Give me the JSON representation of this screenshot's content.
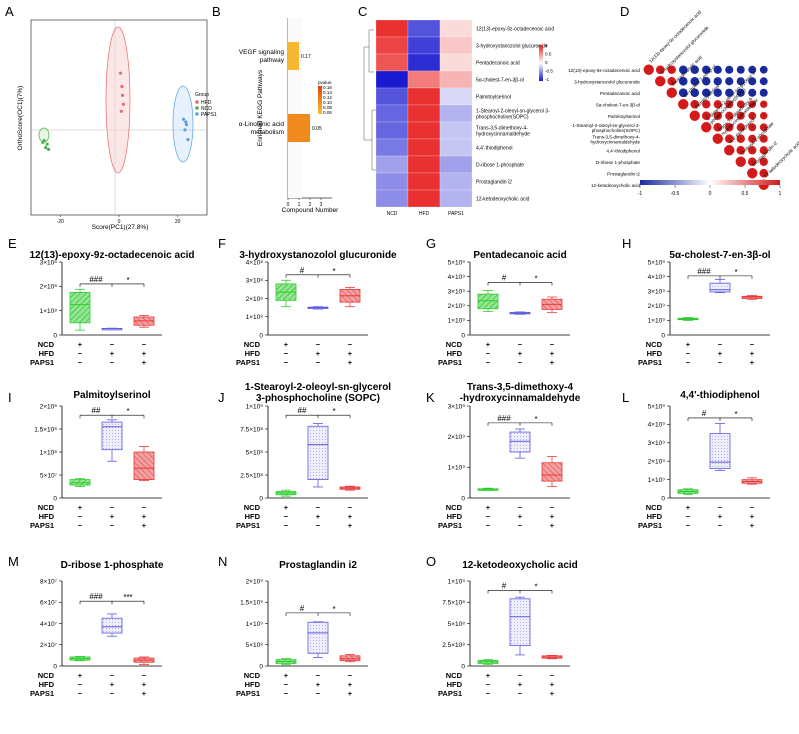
{
  "panel_labels": [
    "A",
    "B",
    "C",
    "D",
    "E",
    "F",
    "G",
    "H",
    "I",
    "J",
    "K",
    "L",
    "M",
    "N",
    "O"
  ],
  "legend_group": {
    "title": "Group",
    "items": [
      {
        "name": "HFD",
        "color": "#e8686a"
      },
      {
        "name": "NCD",
        "color": "#4caf50"
      },
      {
        "name": "PAPS1",
        "color": "#5aa0e0"
      }
    ]
  },
  "colors": {
    "ncd": "#2ecc2e",
    "hfd": "#5b5be0",
    "paps1": "#e83a3a",
    "heat_hi": "#e81e1e",
    "heat_lo": "#1a1ad0"
  },
  "box_conditions": {
    "rows": [
      "NCD",
      "HFD",
      "PAPS1"
    ],
    "cells": [
      [
        "+",
        "−",
        "−"
      ],
      [
        "−",
        "+",
        "+"
      ],
      [
        "−",
        "−",
        "+"
      ]
    ]
  },
  "chart_data": [
    {
      "panel": "A",
      "type": "scatter",
      "xlabel": "Score(PC1)(27.8%)",
      "ylabel": "OrthoScore(OC1)(7%)",
      "x_ticks": [
        "-20",
        "0",
        "20"
      ],
      "series": [
        {
          "name": "NCD",
          "x": [
            -26,
            -25,
            -24.5,
            -25.5,
            -24
          ],
          "y": [
            -3.8,
            -4.4,
            -4.0,
            -3.6,
            -4.6
          ]
        },
        {
          "name": "HFD",
          "x": [
            0.5,
            1,
            1.5,
            0.8,
            1.2
          ],
          "y": [
            4,
            2.5,
            0.5,
            -0.3,
            1.5
          ]
        },
        {
          "name": "PAPS1",
          "x": [
            22,
            23,
            23.5,
            22.5,
            22.8
          ],
          "y": [
            -1.2,
            -1.8,
            -3.5,
            -2.4,
            -1.5
          ]
        }
      ]
    },
    {
      "panel": "B",
      "type": "bar",
      "orientation": "horizontal",
      "ylabel": "Enriched KEGG Pathways",
      "xlabel": "Compound Number",
      "categories": [
        "VEGF signaling\npathway",
        "α-Linolenic acid\nmetabolism"
      ],
      "values": [
        1,
        2
      ],
      "pvalues": [
        "0.17",
        "0.05"
      ],
      "x_ticks": [
        "0",
        "1",
        "2",
        "3"
      ],
      "legend_title": "pvalue",
      "legend_ticks": [
        "0.16",
        "0.14",
        "0.12",
        "0.10",
        "0.08",
        "0.06"
      ]
    },
    {
      "panel": "C",
      "type": "heatmap",
      "columns": [
        "NCD",
        "HFD",
        "PAPS1"
      ],
      "rows": [
        "12(13)-epoxy-9z-octadecenoic acid",
        "3-hydroxystanozolol glucuronide",
        "Pentadecanoic acid",
        "5α-cholest-7-en-3β-ol",
        "Palmitoylserinol",
        "1-Stearoyl-2-oleoyl-sn-glycerol 3-\nphosphocholine(SOPC)",
        "Trans-3,5-dimethoxy-4-\nhydroxycinnamaldehyde",
        "4,4'-thiodiphenol",
        "D-ribose 1-phosphate",
        "Prostaglandin i2",
        "12-ketodeoxycholic acid"
      ],
      "values": [
        [
          1.1,
          -0.9,
          0.2
        ],
        [
          1.0,
          -1.0,
          0.3
        ],
        [
          0.9,
          -1.1,
          0.2
        ],
        [
          -1.2,
          0.7,
          0.4
        ],
        [
          -0.9,
          1.1,
          -0.2
        ],
        [
          -0.8,
          1.1,
          -0.4
        ],
        [
          -0.8,
          1.1,
          -0.3
        ],
        [
          -0.7,
          1.1,
          -0.3
        ],
        [
          -0.5,
          1.1,
          -0.5
        ],
        [
          -0.6,
          1.1,
          -0.4
        ],
        [
          -0.6,
          1.1,
          -0.4
        ]
      ],
      "scale_ticks": [
        "1",
        "0.5",
        "0",
        "-0.5",
        "-1"
      ]
    },
    {
      "panel": "D",
      "type": "heatmap",
      "subtype": "correlation",
      "labels": [
        "12(13)-epoxy-9z-octadecenoic acid",
        "3-hydroxystanozolol glucuronide",
        "Pentadecanoic acid",
        "5α-cholest-7-en-3β-ol",
        "Palmitoylserinol",
        "1-Stearoyl-2-oleoyl-sn-glycerol 3-\nphosphocholine(SOPC)",
        "Trans-3,5-dimethoxy-4-\nhydroxycinnamaldehyde",
        "4,4'-thiodiphenol",
        "D-ribose 1-phosphate",
        "Prostaglandin i2",
        "12-ketodeoxycholic acid"
      ],
      "scale_ticks": [
        "-1",
        "-0.5",
        "0",
        "0.5",
        "1"
      ]
    },
    {
      "panel": "E",
      "type": "box",
      "title": "12(13)-epoxy-9z-octadecenoic acid",
      "ylim": [
        0,
        300000000.0
      ],
      "y_ticks": [
        0,
        100000000.0,
        200000000.0,
        300000000.0
      ],
      "exp": 8,
      "boxes": [
        {
          "group": "NCD",
          "min": 20000000.0,
          "q1": 50000000.0,
          "median": 125000000.0,
          "q3": 175000000.0,
          "max": 188000000.0
        },
        {
          "group": "HFD",
          "min": 22000000.0,
          "q1": 24000000.0,
          "median": 26000000.0,
          "q3": 27000000.0,
          "max": 28000000.0
        },
        {
          "group": "PAPS1",
          "min": 32000000.0,
          "q1": 40000000.0,
          "median": 58000000.0,
          "q3": 74000000.0,
          "max": 80000000.0
        }
      ],
      "sig": {
        "left": "###",
        "right": "*",
        "y": 210000000.0
      }
    },
    {
      "panel": "F",
      "type": "box",
      "title": "3-hydroxystanozolol glucuronide",
      "ylim": [
        0,
        400000000.0
      ],
      "y_ticks": [
        0,
        100000000.0,
        200000000.0,
        300000000.0,
        400000000.0
      ],
      "exp": 8,
      "boxes": [
        {
          "group": "NCD",
          "min": 155000000.0,
          "q1": 190000000.0,
          "median": 235000000.0,
          "q3": 280000000.0,
          "max": 300000000.0
        },
        {
          "group": "HFD",
          "min": 142000000.0,
          "q1": 145000000.0,
          "median": 150000000.0,
          "q3": 153000000.0,
          "max": 155000000.0
        },
        {
          "group": "PAPS1",
          "min": 155000000.0,
          "q1": 180000000.0,
          "median": 215000000.0,
          "q3": 250000000.0,
          "max": 260000000.0
        }
      ],
      "sig": {
        "left": "#",
        "right": "*",
        "y": 330000000.0
      }
    },
    {
      "panel": "G",
      "type": "box",
      "title": "Pentadecanoic acid",
      "ylim": [
        0,
        5000000000.0
      ],
      "y_ticks": [
        0,
        1000000000.0,
        2000000000.0,
        3000000000.0,
        4000000000.0,
        5000000000.0
      ],
      "exp": 9,
      "boxes": [
        {
          "group": "NCD",
          "min": 1600000000.0,
          "q1": 1800000000.0,
          "median": 2350000000.0,
          "q3": 2800000000.0,
          "max": 3050000000.0
        },
        {
          "group": "HFD",
          "min": 1420000000.0,
          "q1": 1450000000.0,
          "median": 1500000000.0,
          "q3": 1550000000.0,
          "max": 1580000000.0
        },
        {
          "group": "PAPS1",
          "min": 1550000000.0,
          "q1": 1750000000.0,
          "median": 2100000000.0,
          "q3": 2450000000.0,
          "max": 2600000000.0
        }
      ],
      "sig": {
        "left": "#",
        "right": "*",
        "y": 3600000000.0
      }
    },
    {
      "panel": "H",
      "type": "box",
      "title": "5α-cholest-7-en-3β-ol",
      "ylim": [
        0,
        5000000000.0
      ],
      "y_ticks": [
        0,
        1000000000.0,
        2000000000.0,
        3000000000.0,
        4000000000.0,
        5000000000.0
      ],
      "exp": 9,
      "boxes": [
        {
          "group": "NCD",
          "min": 1000000000.0,
          "q1": 1050000000.0,
          "median": 1100000000.0,
          "q3": 1150000000.0,
          "max": 1200000000.0
        },
        {
          "group": "HFD",
          "min": 2900000000.0,
          "q1": 2950000000.0,
          "median": 3100000000.0,
          "q3": 3550000000.0,
          "max": 3800000000.0
        },
        {
          "group": "PAPS1",
          "min": 2450000000.0,
          "q1": 2500000000.0,
          "median": 2600000000.0,
          "q3": 2650000000.0,
          "max": 2700000000.0
        }
      ],
      "sig": {
        "left": "###",
        "right": "*",
        "y": 4050000000.0
      }
    },
    {
      "panel": "I",
      "type": "box",
      "title": "Palmitoylserinol",
      "ylim": [
        0,
        200000000.0
      ],
      "y_ticks": [
        0,
        50000000.0,
        100000000.0,
        150000000.0,
        200000000.0
      ],
      "y_labels": [
        "0",
        "5×10⁷",
        "1×10⁸",
        "1.5×10⁸",
        "2×10⁸"
      ],
      "boxes": [
        {
          "group": "NCD",
          "min": 25000000.0,
          "q1": 28000000.0,
          "median": 33000000.0,
          "q3": 40000000.0,
          "max": 42000000.0
        },
        {
          "group": "HFD",
          "min": 80000000.0,
          "q1": 105000000.0,
          "median": 155000000.0,
          "q3": 165000000.0,
          "max": 170000000.0
        },
        {
          "group": "PAPS1",
          "min": 38000000.0,
          "q1": 40000000.0,
          "median": 65000000.0,
          "q3": 100000000.0,
          "max": 112000000.0
        }
      ],
      "sig": {
        "left": "##",
        "right": "*",
        "y": 180000000.0
      }
    },
    {
      "panel": "J",
      "type": "box",
      "title": "1-Stearoyl-2-oleoyl-sn-glycerol\n3-phosphocholine (SOPC)",
      "ylim": [
        0,
        1000000000.0
      ],
      "y_ticks": [
        0,
        250000000.0,
        500000000.0,
        750000000.0,
        1000000000.0
      ],
      "y_labels": [
        "0",
        "2.5×10⁸",
        "5×10⁸",
        "7.5×10⁸",
        "1×10⁹"
      ],
      "boxes": [
        {
          "group": "NCD",
          "min": 20000000.0,
          "q1": 35000000.0,
          "median": 55000000.0,
          "q3": 70000000.0,
          "max": 85000000.0
        },
        {
          "group": "HFD",
          "min": 120000000.0,
          "q1": 200000000.0,
          "median": 580000000.0,
          "q3": 780000000.0,
          "max": 810000000.0
        },
        {
          "group": "PAPS1",
          "min": 85000000.0,
          "q1": 95000000.0,
          "median": 108000000.0,
          "q3": 120000000.0,
          "max": 128000000.0
        }
      ],
      "sig": {
        "left": "##",
        "right": "*",
        "y": 900000000.0
      }
    },
    {
      "panel": "K",
      "type": "box",
      "title": "Trans-3,5-dimethoxy-4\n-hydroxycinnamaldehyde",
      "ylim": [
        0,
        3000000000.0
      ],
      "y_ticks": [
        0,
        1000000000.0,
        2000000000.0,
        3000000000.0
      ],
      "exp": 9,
      "boxes": [
        {
          "group": "NCD",
          "min": 250000000.0,
          "q1": 260000000.0,
          "median": 280000000.0,
          "q3": 300000000.0,
          "max": 320000000.0
        },
        {
          "group": "HFD",
          "min": 1300000000.0,
          "q1": 1500000000.0,
          "median": 1850000000.0,
          "q3": 2150000000.0,
          "max": 2250000000.0
        },
        {
          "group": "PAPS1",
          "min": 380000000.0,
          "q1": 550000000.0,
          "median": 750000000.0,
          "q3": 1150000000.0,
          "max": 1350000000.0
        }
      ],
      "sig": {
        "left": "###",
        "right": "*",
        "y": 2450000000.0
      }
    },
    {
      "panel": "L",
      "type": "box",
      "title": "4,4'-thiodiphenol",
      "ylim": [
        0,
        5000000000.0
      ],
      "y_ticks": [
        0,
        1000000000.0,
        2000000000.0,
        3000000000.0,
        4000000000.0,
        5000000000.0
      ],
      "exp": 9,
      "boxes": [
        {
          "group": "NCD",
          "min": 200000000.0,
          "q1": 250000000.0,
          "median": 350000000.0,
          "q3": 450000000.0,
          "max": 500000000.0
        },
        {
          "group": "HFD",
          "min": 1500000000.0,
          "q1": 1600000000.0,
          "median": 1950000000.0,
          "q3": 3500000000.0,
          "max": 4050000000.0
        },
        {
          "group": "PAPS1",
          "min": 750000000.0,
          "q1": 800000000.0,
          "median": 900000000.0,
          "q3": 1000000000.0,
          "max": 1100000000.0
        }
      ],
      "sig": {
        "left": "#",
        "right": "*",
        "y": 4350000000.0
      }
    },
    {
      "panel": "M",
      "type": "box",
      "title": "D-ribose 1-phosphate",
      "ylim": [
        0,
        80000000.0
      ],
      "y_ticks": [
        0,
        20000000.0,
        40000000.0,
        60000000.0,
        80000000.0
      ],
      "exp": 7,
      "boxes": [
        {
          "group": "NCD",
          "min": 5000000.0,
          "q1": 5500000.0,
          "median": 7000000.0,
          "q3": 8500000.0,
          "max": 9000000.0
        },
        {
          "group": "HFD",
          "min": 28000000.0,
          "q1": 31000000.0,
          "median": 37000000.0,
          "q3": 45000000.0,
          "max": 49000000.0
        },
        {
          "group": "PAPS1",
          "min": 1500000.0,
          "q1": 3500000.0,
          "median": 5500000.0,
          "q3": 7500000.0,
          "max": 8500000.0
        }
      ],
      "sig": {
        "left": "###",
        "right": "***",
        "y": 61000000.0
      }
    },
    {
      "panel": "N",
      "type": "box",
      "title": "Prostaglandin i2",
      "ylim": [
        0,
        2000000000.0
      ],
      "y_ticks": [
        0,
        500000000.0,
        1000000000.0,
        1500000000.0,
        2000000000.0
      ],
      "y_labels": [
        "0",
        "5×10⁸",
        "1×10⁹",
        "1.5×10⁹",
        "2×10⁹"
      ],
      "boxes": [
        {
          "group": "NCD",
          "min": 30000000.0,
          "q1": 60000000.0,
          "median": 105000000.0,
          "q3": 150000000.0,
          "max": 175000000.0
        },
        {
          "group": "HFD",
          "min": 200000000.0,
          "q1": 300000000.0,
          "median": 780000000.0,
          "q3": 1030000000.0,
          "max": 1040000000.0
        },
        {
          "group": "PAPS1",
          "min": 100000000.0,
          "q1": 125000000.0,
          "median": 170000000.0,
          "q3": 240000000.0,
          "max": 270000000.0
        }
      ],
      "sig": {
        "left": "#",
        "right": "*",
        "y": 1250000000.0
      }
    },
    {
      "panel": "O",
      "type": "box",
      "title": "12-ketodeoxycholic acid",
      "ylim": [
        0,
        1000000000.0
      ],
      "y_ticks": [
        0,
        250000000.0,
        500000000.0,
        750000000.0,
        1000000000.0
      ],
      "y_labels": [
        "0",
        "2.5×10⁸",
        "5×10⁸",
        "7.5×10⁸",
        "1×10⁹"
      ],
      "boxes": [
        {
          "group": "NCD",
          "min": 20000000.0,
          "q1": 30000000.0,
          "median": 50000000.0,
          "q3": 65000000.0,
          "max": 75000000.0
        },
        {
          "group": "HFD",
          "min": 130000000.0,
          "q1": 240000000.0,
          "median": 580000000.0,
          "q3": 790000000.0,
          "max": 810000000.0
        },
        {
          "group": "PAPS1",
          "min": 85000000.0,
          "q1": 92000000.0,
          "median": 105000000.0,
          "q3": 120000000.0,
          "max": 125000000.0
        }
      ],
      "sig": {
        "left": "#",
        "right": "*",
        "y": 890000000.0
      }
    }
  ]
}
